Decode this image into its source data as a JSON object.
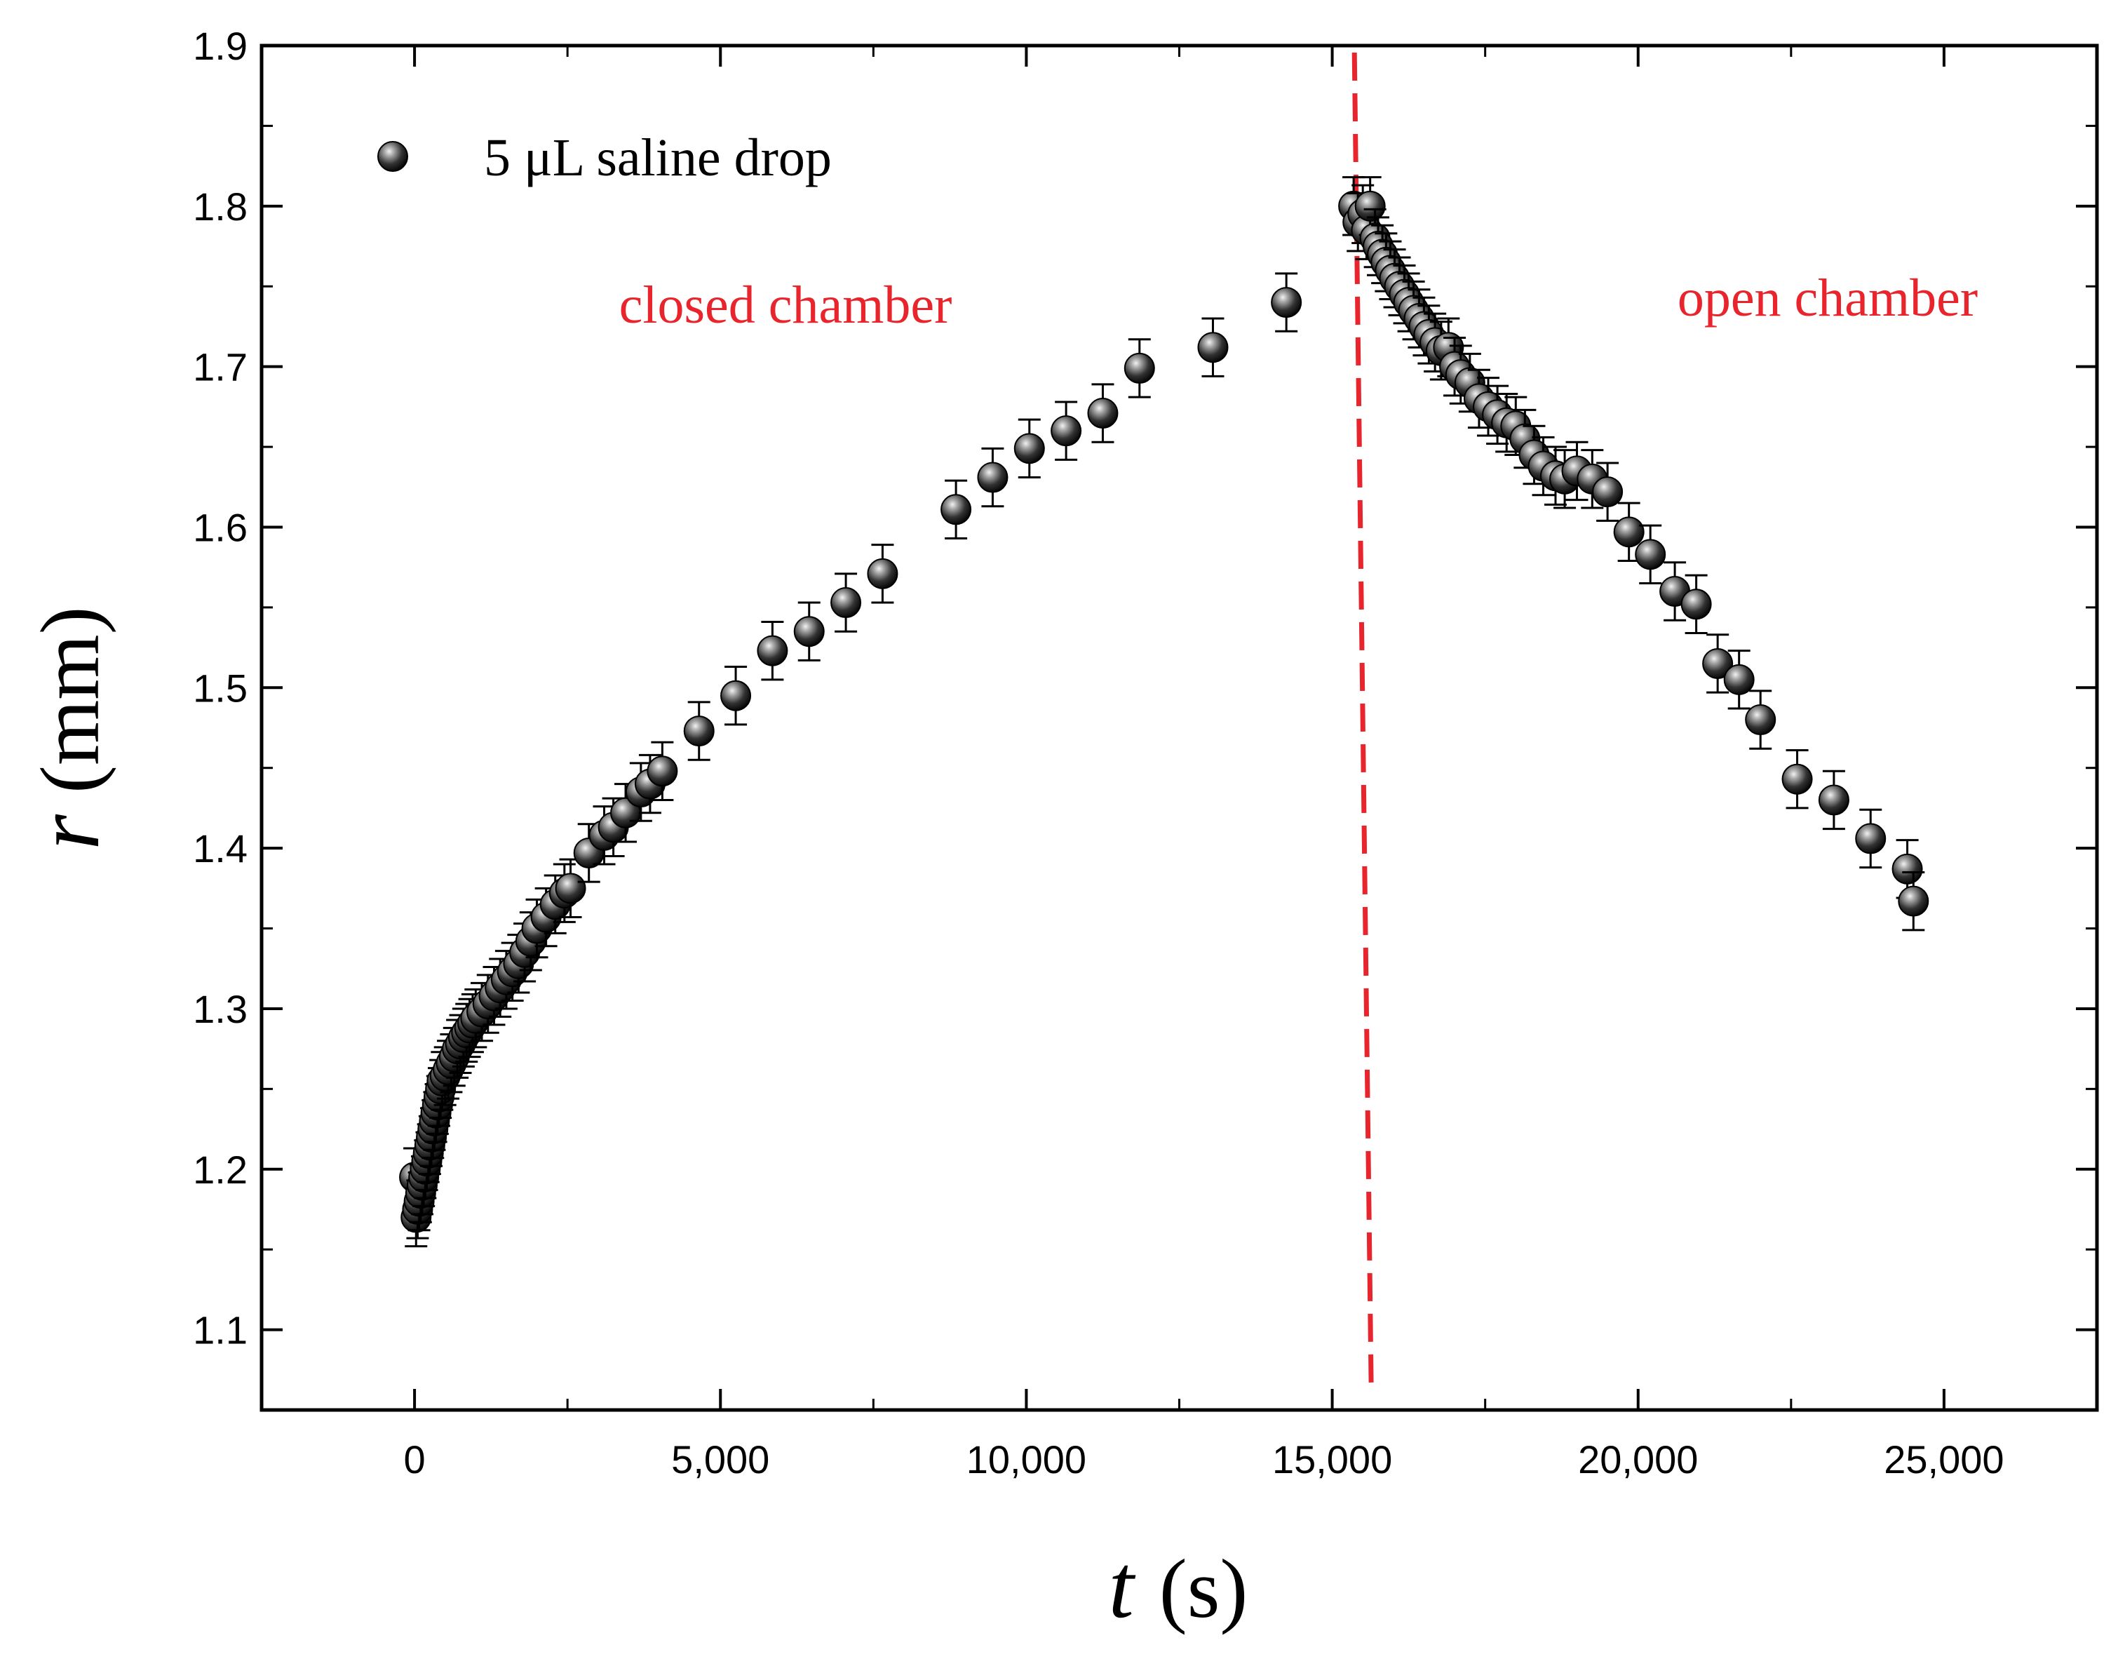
{
  "chart_data": {
    "type": "scatter",
    "xlabel_var": "t",
    "xlabel_unit": "(s)",
    "ylabel_var": "r",
    "ylabel_unit": "(mm)",
    "xlim": [
      -2500,
      27500
    ],
    "ylim": [
      1.05,
      1.9
    ],
    "xticks": [
      0,
      5000,
      10000,
      15000,
      20000,
      25000
    ],
    "xtick_labels": [
      "0",
      "5,000",
      "10,000",
      "15,000",
      "20,000",
      "25,000"
    ],
    "yticks": [
      1.1,
      1.2,
      1.3,
      1.4,
      1.5,
      1.6,
      1.7,
      1.8,
      1.9
    ],
    "ytick_labels": [
      "1.1",
      "1.2",
      "1.3",
      "1.4",
      "1.5",
      "1.6",
      "1.7",
      "1.8",
      "1.9"
    ],
    "legend": {
      "label": "5 μL saline drop",
      "position": "top-left"
    },
    "annotations": {
      "left": "closed chamber",
      "right": "open chamber"
    },
    "divider": {
      "x": 15500,
      "color": "#e8242c",
      "style": "dashed"
    },
    "error": 0.018,
    "series": [
      {
        "name": "5 μL saline drop",
        "points": [
          [
            0,
            1.195
          ],
          [
            25,
            1.17
          ],
          [
            50,
            1.175
          ],
          [
            75,
            1.18
          ],
          [
            100,
            1.185
          ],
          [
            125,
            1.19
          ],
          [
            150,
            1.195
          ],
          [
            175,
            1.2
          ],
          [
            200,
            1.205
          ],
          [
            225,
            1.21
          ],
          [
            250,
            1.215
          ],
          [
            275,
            1.22
          ],
          [
            300,
            1.225
          ],
          [
            325,
            1.23
          ],
          [
            350,
            1.235
          ],
          [
            375,
            1.24
          ],
          [
            400,
            1.245
          ],
          [
            425,
            1.25
          ],
          [
            450,
            1.255
          ],
          [
            500,
            1.258
          ],
          [
            550,
            1.262
          ],
          [
            600,
            1.266
          ],
          [
            650,
            1.27
          ],
          [
            700,
            1.275
          ],
          [
            750,
            1.278
          ],
          [
            800,
            1.282
          ],
          [
            850,
            1.285
          ],
          [
            900,
            1.288
          ],
          [
            950,
            1.291
          ],
          [
            1000,
            1.294
          ],
          [
            1100,
            1.298
          ],
          [
            1200,
            1.303
          ],
          [
            1300,
            1.308
          ],
          [
            1400,
            1.313
          ],
          [
            1500,
            1.318
          ],
          [
            1600,
            1.323
          ],
          [
            1700,
            1.328
          ],
          [
            1800,
            1.335
          ],
          [
            1900,
            1.342
          ],
          [
            2000,
            1.35
          ],
          [
            2150,
            1.357
          ],
          [
            2300,
            1.365
          ],
          [
            2450,
            1.372
          ],
          [
            2550,
            1.375
          ],
          [
            2850,
            1.397
          ],
          [
            3100,
            1.408
          ],
          [
            3250,
            1.413
          ],
          [
            3450,
            1.422
          ],
          [
            3700,
            1.435
          ],
          [
            3850,
            1.44
          ],
          [
            4050,
            1.448
          ],
          [
            4650,
            1.473
          ],
          [
            5250,
            1.495
          ],
          [
            5850,
            1.523
          ],
          [
            6450,
            1.535
          ],
          [
            7050,
            1.553
          ],
          [
            7650,
            1.571
          ],
          [
            8850,
            1.611
          ],
          [
            9450,
            1.631
          ],
          [
            10050,
            1.649
          ],
          [
            10650,
            1.66
          ],
          [
            11250,
            1.671
          ],
          [
            11850,
            1.699
          ],
          [
            13050,
            1.712
          ],
          [
            14250,
            1.74
          ],
          [
            15350,
            1.8
          ],
          [
            15420,
            1.79
          ],
          [
            15500,
            1.795
          ],
          [
            15560,
            1.785
          ],
          [
            15620,
            1.8
          ],
          [
            15700,
            1.78
          ],
          [
            15750,
            1.775
          ],
          [
            15820,
            1.77
          ],
          [
            15880,
            1.765
          ],
          [
            15950,
            1.76
          ],
          [
            16020,
            1.755
          ],
          [
            16100,
            1.75
          ],
          [
            16180,
            1.745
          ],
          [
            16250,
            1.74
          ],
          [
            16330,
            1.735
          ],
          [
            16420,
            1.73
          ],
          [
            16500,
            1.725
          ],
          [
            16580,
            1.72
          ],
          [
            16680,
            1.715
          ],
          [
            16780,
            1.71
          ],
          [
            16900,
            1.712
          ],
          [
            17000,
            1.7
          ],
          [
            17100,
            1.695
          ],
          [
            17250,
            1.69
          ],
          [
            17400,
            1.68
          ],
          [
            17550,
            1.675
          ],
          [
            17700,
            1.67
          ],
          [
            17850,
            1.665
          ],
          [
            18000,
            1.663
          ],
          [
            18150,
            1.655
          ],
          [
            18300,
            1.645
          ],
          [
            18450,
            1.638
          ],
          [
            18650,
            1.632
          ],
          [
            18800,
            1.63
          ],
          [
            19000,
            1.635
          ],
          [
            19250,
            1.63
          ],
          [
            19500,
            1.622
          ],
          [
            19850,
            1.597
          ],
          [
            20200,
            1.583
          ],
          [
            20600,
            1.56
          ],
          [
            20950,
            1.552
          ],
          [
            21300,
            1.515
          ],
          [
            21650,
            1.505
          ],
          [
            22000,
            1.48
          ],
          [
            22600,
            1.443
          ],
          [
            23200,
            1.43
          ],
          [
            23800,
            1.406
          ],
          [
            24400,
            1.387
          ],
          [
            24500,
            1.367
          ]
        ]
      }
    ]
  }
}
